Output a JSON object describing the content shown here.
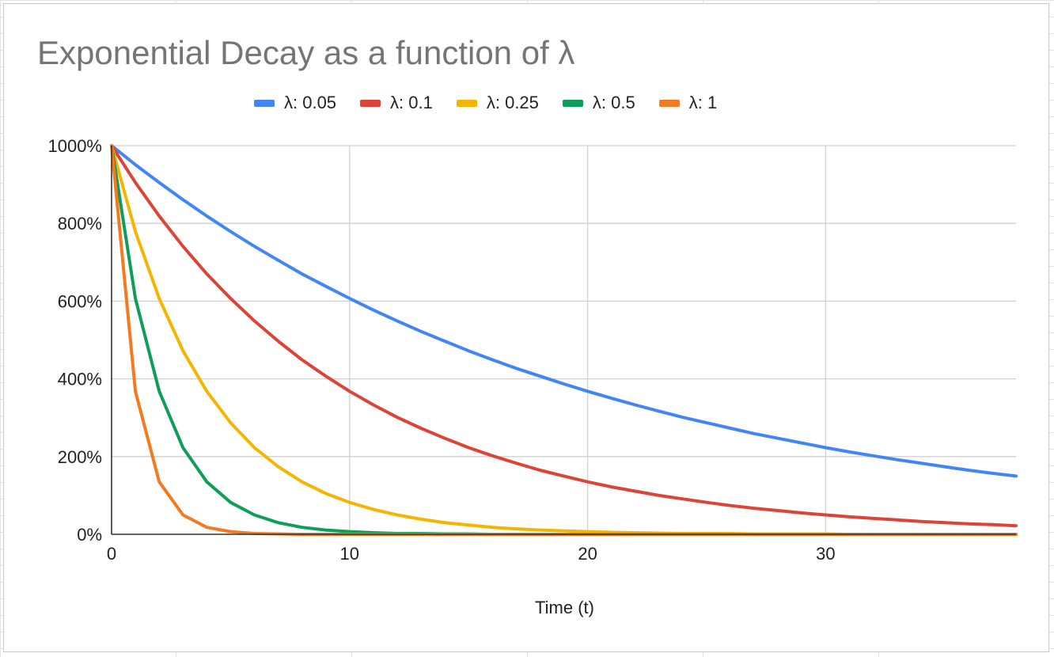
{
  "chart_data": {
    "type": "line",
    "title": "Exponential Decay as a function of λ",
    "xlabel": "Time (t)",
    "ylabel": "",
    "xlim": [
      0,
      38
    ],
    "ylim": [
      0,
      10
    ],
    "x_ticks": [
      0,
      10,
      20,
      30
    ],
    "y_ticks": [
      0,
      2,
      4,
      6,
      8,
      10
    ],
    "y_tick_labels": [
      "0%",
      "200%",
      "400%",
      "600%",
      "800%",
      "1000%"
    ],
    "grid": true,
    "legend_position": "top",
    "x": [
      0,
      1,
      2,
      3,
      4,
      5,
      6,
      7,
      8,
      9,
      10,
      11,
      12,
      13,
      14,
      15,
      16,
      17,
      18,
      19,
      20,
      21,
      22,
      23,
      24,
      25,
      26,
      27,
      28,
      29,
      30,
      31,
      32,
      33,
      34,
      35,
      36,
      37,
      38
    ],
    "series": [
      {
        "name": "λ: 0.05",
        "color": "#4285F4",
        "values": [
          10,
          9.51,
          9.05,
          8.61,
          8.19,
          7.79,
          7.41,
          7.05,
          6.7,
          6.38,
          6.07,
          5.77,
          5.49,
          5.22,
          4.97,
          4.72,
          4.49,
          4.27,
          4.07,
          3.87,
          3.68,
          3.5,
          3.33,
          3.17,
          3.01,
          2.87,
          2.73,
          2.59,
          2.47,
          2.35,
          2.23,
          2.12,
          2.02,
          1.92,
          1.83,
          1.74,
          1.65,
          1.57,
          1.5
        ]
      },
      {
        "name": "λ: 0.1",
        "color": "#DB4437",
        "values": [
          10,
          9.05,
          8.19,
          7.41,
          6.7,
          6.07,
          5.49,
          4.97,
          4.49,
          4.07,
          3.68,
          3.33,
          3.01,
          2.73,
          2.47,
          2.23,
          2.02,
          1.83,
          1.65,
          1.5,
          1.35,
          1.22,
          1.11,
          1.0,
          0.91,
          0.82,
          0.74,
          0.67,
          0.61,
          0.55,
          0.5,
          0.45,
          0.41,
          0.37,
          0.33,
          0.3,
          0.27,
          0.25,
          0.22
        ]
      },
      {
        "name": "λ: 0.25",
        "color": "#F4B400",
        "values": [
          10,
          7.79,
          6.07,
          4.72,
          3.68,
          2.87,
          2.23,
          1.74,
          1.35,
          1.05,
          0.82,
          0.64,
          0.5,
          0.39,
          0.3,
          0.24,
          0.18,
          0.14,
          0.11,
          0.09,
          0.07,
          0.05,
          0.04,
          0.03,
          0.02,
          0.02,
          0.02,
          0.01,
          0.01,
          0.01,
          0.01,
          0,
          0,
          0,
          0,
          0,
          0,
          0,
          0
        ]
      },
      {
        "name": "λ: 0.5",
        "color": "#0F9D58",
        "values": [
          10,
          6.07,
          3.68,
          2.23,
          1.35,
          0.82,
          0.5,
          0.3,
          0.18,
          0.11,
          0.07,
          0.04,
          0.02,
          0.02,
          0.01,
          0.01,
          0,
          0,
          0,
          0,
          0,
          0,
          0,
          0,
          0,
          0,
          0,
          0,
          0,
          0,
          0,
          0,
          0,
          0,
          0,
          0,
          0,
          0,
          0
        ]
      },
      {
        "name": "λ: 1",
        "color": "#F47A20",
        "values": [
          10,
          3.68,
          1.35,
          0.5,
          0.18,
          0.07,
          0.02,
          0.01,
          0,
          0,
          0,
          0,
          0,
          0,
          0,
          0,
          0,
          0,
          0,
          0,
          0,
          0,
          0,
          0,
          0,
          0,
          0,
          0,
          0,
          0,
          0,
          0,
          0,
          0,
          0,
          0,
          0,
          0,
          0
        ]
      }
    ]
  }
}
